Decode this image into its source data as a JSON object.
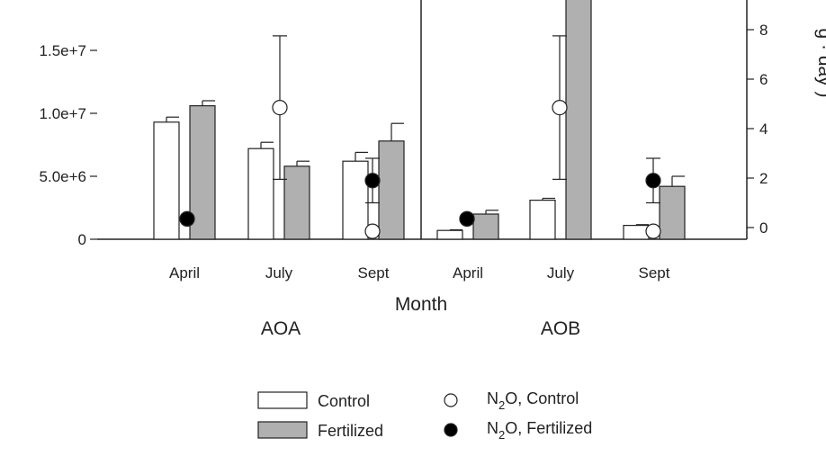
{
  "chart_data": {
    "type": "bar",
    "xlabel": "Month",
    "panels": [
      {
        "name": "AOA",
        "categories": [
          "April",
          "July",
          "Sept"
        ]
      },
      {
        "name": "AOB",
        "categories": [
          "April",
          "July",
          "Sept"
        ]
      }
    ],
    "y_left": {
      "ylim": [
        0,
        19000000
      ],
      "ticks": [
        0,
        5000000,
        10000000,
        15000000
      ],
      "tick_labels": [
        "0",
        "5.0e+6",
        "1.0e+7",
        "1.5e+7"
      ]
    },
    "y_right": {
      "ylim": [
        -0.4,
        9.7
      ],
      "ticks": [
        0,
        2,
        4,
        6,
        8
      ],
      "tick_labels": [
        "0",
        "2",
        "4",
        "6",
        "8"
      ],
      "label_partial": "g · day )"
    },
    "bar_series": [
      {
        "name": "Control",
        "color": "#ffffff",
        "values": [
          [
            9300000,
            7200000,
            6200000
          ],
          [
            700000,
            3100000,
            1100000
          ]
        ],
        "errors": [
          [
            400000,
            500000,
            700000
          ],
          [
            50000,
            150000,
            60000
          ]
        ]
      },
      {
        "name": "Fertilized",
        "color": "#b0b0b0",
        "values": [
          [
            10600000,
            5800000,
            7800000
          ],
          [
            2000000,
            22000000,
            4200000
          ]
        ],
        "errors": [
          [
            400000,
            400000,
            1400000
          ],
          [
            300000,
            0,
            800000
          ]
        ]
      }
    ],
    "point_series": [
      {
        "name": "N2O, Control",
        "fill": "#ffffff",
        "values": [
          [
            0.35,
            4.85,
            -0.15
          ],
          [
            0.35,
            4.85,
            -0.15
          ]
        ],
        "errors": [
          [
            0,
            2.9,
            0
          ],
          [
            0,
            2.9,
            0
          ]
        ]
      },
      {
        "name": "N2O, Fertilized",
        "fill": "#000000",
        "values": [
          [
            0.35,
            null,
            1.9
          ],
          [
            0.35,
            null,
            1.9
          ]
        ],
        "errors": [
          [
            0,
            0,
            0.9
          ],
          [
            0,
            0,
            0.9
          ]
        ]
      }
    ],
    "legend": {
      "placement": "bottom-center",
      "items": [
        {
          "kind": "bar",
          "label": "Control",
          "color": "#ffffff"
        },
        {
          "kind": "bar",
          "label": "Fertilized",
          "color": "#b0b0b0"
        },
        {
          "kind": "point",
          "label_main": "N",
          "label_sub": "2",
          "label_rest": "O, Control",
          "fill": "#ffffff"
        },
        {
          "kind": "point",
          "label_main": "N",
          "label_sub": "2",
          "label_rest": "O, Fertilized",
          "fill": "#000000"
        }
      ]
    }
  }
}
